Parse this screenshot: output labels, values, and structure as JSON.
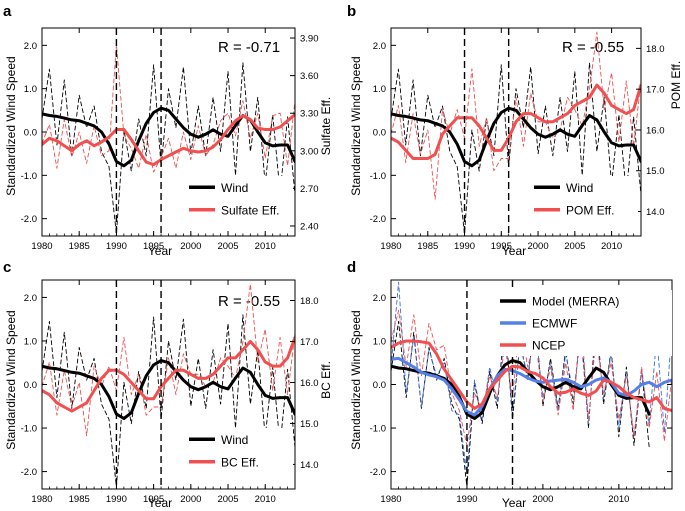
{
  "chart_data": [
    {
      "panel": "a",
      "type": "line",
      "correlation_label": "R = -0.71",
      "xlabel": "Year",
      "ylabel": "Standardized Wind Speed",
      "ylabel_right": "Sulfate Eff.",
      "xlim": [
        1980,
        2014
      ],
      "ylim": [
        -2.4,
        2.4
      ],
      "ylim_right": [
        2.32,
        3.98
      ],
      "x_ticks": [
        "1980",
        "1985",
        "1990",
        "1995",
        "2000",
        "2005",
        "2010"
      ],
      "y_ticks": [
        "2.0",
        "1.0",
        "0.0",
        "-1.0",
        "-2.0"
      ],
      "y_ticks_right": [
        "3.90",
        "3.60",
        "3.30",
        "3.00",
        "2.70",
        "2.40"
      ],
      "vlines": [
        1990,
        1996
      ],
      "legend": [
        "Wind",
        "Sulfate Eff."
      ],
      "x": [
        1980,
        1981,
        1982,
        1983,
        1984,
        1985,
        1986,
        1987,
        1988,
        1989,
        1990,
        1991,
        1992,
        1993,
        1994,
        1995,
        1996,
        1997,
        1998,
        1999,
        2000,
        2001,
        2002,
        2003,
        2004,
        2005,
        2006,
        2007,
        2008,
        2009,
        2010,
        2011,
        2012,
        2013,
        2014
      ],
      "series": [
        {
          "name": "Wind",
          "axis": "left",
          "style": "smoothed",
          "values": [
            0.42,
            0.38,
            0.36,
            0.32,
            0.28,
            0.26,
            0.2,
            0.14,
            0.0,
            -0.28,
            -0.68,
            -0.78,
            -0.65,
            -0.2,
            0.2,
            0.45,
            0.55,
            0.5,
            0.3,
            0.1,
            -0.05,
            -0.12,
            -0.05,
            0.05,
            -0.05,
            -0.1,
            0.15,
            0.38,
            0.28,
            0.0,
            -0.25,
            -0.32,
            -0.3,
            -0.3,
            -0.68
          ]
        },
        {
          "name": "Wind (annual)",
          "axis": "left",
          "style": "dashed",
          "values": [
            0.3,
            1.45,
            -0.3,
            1.2,
            -0.55,
            0.85,
            0.1,
            0.6,
            -0.45,
            -0.8,
            -2.35,
            0.05,
            -0.9,
            0.3,
            -0.55,
            1.55,
            -0.8,
            1.0,
            0.1,
            1.5,
            -0.5,
            0.6,
            -0.55,
            0.8,
            -0.45,
            1.4,
            -1.0,
            1.6,
            -0.45,
            0.8,
            -1.2,
            0.4,
            -1.4,
            0.35,
            -1.45
          ]
        },
        {
          "name": "Sulfate Eff.",
          "axis": "right",
          "style": "smoothed",
          "values": [
            3.05,
            3.1,
            3.08,
            3.04,
            3.0,
            3.05,
            3.08,
            3.04,
            3.07,
            3.11,
            3.17,
            3.17,
            3.09,
            3.0,
            2.91,
            2.89,
            2.93,
            2.96,
            2.99,
            3.02,
            3.0,
            2.99,
            3.0,
            3.03,
            3.09,
            3.17,
            3.24,
            3.28,
            3.25,
            3.18,
            3.17,
            3.17,
            3.19,
            3.24,
            3.29
          ]
        },
        {
          "name": "Sulfate Eff. (annual)",
          "axis": "right",
          "style": "dashed",
          "values": [
            3.06,
            3.21,
            2.86,
            3.25,
            2.95,
            3.15,
            2.9,
            3.2,
            2.96,
            3.0,
            3.85,
            3.12,
            3.02,
            2.86,
            3.13,
            2.83,
            2.95,
            3.1,
            2.86,
            3.15,
            2.93,
            3.2,
            2.96,
            3.05,
            3.24,
            3.3,
            3.12,
            3.4,
            3.1,
            3.3,
            2.94,
            3.28,
            3.3,
            2.88,
            3.4
          ]
        }
      ]
    },
    {
      "panel": "b",
      "type": "line",
      "correlation_label": "R = -0.55",
      "xlabel": "Year",
      "ylabel": "Standardized Wind Speed",
      "ylabel_right": "POM Eff.",
      "xlim": [
        1980,
        2014
      ],
      "ylim": [
        -2.4,
        2.4
      ],
      "ylim_right": [
        13.4,
        18.5
      ],
      "x_ticks": [
        "1980",
        "1985",
        "1990",
        "1995",
        "2000",
        "2005",
        "2010"
      ],
      "y_ticks": [
        "2.0",
        "1.0",
        "0.0",
        "-1.0",
        "-2.0"
      ],
      "y_ticks_right": [
        "18.0",
        "17.0",
        "16.0",
        "15.0",
        "14.0"
      ],
      "vlines": [
        1990,
        1996
      ],
      "legend": [
        "Wind",
        "POM Eff."
      ],
      "x": [
        1980,
        1981,
        1982,
        1983,
        1984,
        1985,
        1986,
        1987,
        1988,
        1989,
        1990,
        1991,
        1992,
        1993,
        1994,
        1995,
        1996,
        1997,
        1998,
        1999,
        2000,
        2001,
        2002,
        2003,
        2004,
        2005,
        2006,
        2007,
        2008,
        2009,
        2010,
        2011,
        2012,
        2013,
        2014
      ],
      "series": [
        {
          "name": "Wind",
          "axis": "left",
          "style": "smoothed",
          "values": [
            0.42,
            0.38,
            0.36,
            0.32,
            0.28,
            0.26,
            0.2,
            0.14,
            0.0,
            -0.28,
            -0.68,
            -0.78,
            -0.65,
            -0.2,
            0.2,
            0.45,
            0.55,
            0.5,
            0.3,
            0.1,
            -0.05,
            -0.12,
            -0.05,
            0.05,
            -0.05,
            -0.1,
            0.15,
            0.38,
            0.28,
            0.0,
            -0.25,
            -0.32,
            -0.3,
            -0.3,
            -0.68
          ]
        },
        {
          "name": "Wind (annual)",
          "axis": "left",
          "style": "dashed",
          "values": [
            0.3,
            1.45,
            -0.3,
            1.2,
            -0.55,
            0.85,
            0.1,
            0.6,
            -0.45,
            -0.8,
            -2.35,
            0.05,
            -0.9,
            0.3,
            -0.55,
            1.55,
            -0.8,
            1.0,
            0.1,
            1.5,
            -0.5,
            0.6,
            -0.55,
            0.8,
            -0.45,
            1.4,
            -1.0,
            1.6,
            -0.45,
            0.8,
            -1.2,
            0.4,
            -1.4,
            0.35,
            -1.45
          ]
        },
        {
          "name": "POM Eff.",
          "axis": "right",
          "style": "smoothed",
          "values": [
            15.8,
            15.7,
            15.5,
            15.3,
            15.3,
            15.3,
            15.4,
            15.9,
            16.1,
            16.3,
            16.3,
            16.3,
            16.1,
            15.8,
            15.5,
            15.5,
            15.8,
            16.2,
            16.4,
            16.4,
            16.3,
            16.2,
            16.2,
            16.3,
            16.4,
            16.6,
            16.7,
            16.8,
            17.1,
            16.9,
            16.6,
            16.5,
            16.4,
            16.5,
            17.1
          ]
        },
        {
          "name": "POM Eff. (annual)",
          "axis": "right",
          "style": "dashed",
          "values": [
            15.9,
            16.6,
            15.2,
            16.4,
            15.4,
            16.0,
            14.3,
            16.5,
            15.9,
            16.5,
            15.8,
            17.5,
            15.6,
            16.3,
            15.0,
            15.3,
            15.3,
            16.8,
            15.6,
            16.9,
            16.2,
            16.2,
            15.8,
            16.0,
            16.8,
            16.5,
            16.1,
            17.0,
            18.4,
            16.5,
            17.4,
            15.7,
            17.2,
            15.6,
            17.2
          ]
        }
      ]
    },
    {
      "panel": "c",
      "type": "line",
      "correlation_label": "R = -0.55",
      "xlabel": "Year",
      "ylabel": "Standardized Wind Speed",
      "ylabel_right": "BC Eff.",
      "xlim": [
        1980,
        2014
      ],
      "ylim": [
        -2.4,
        2.4
      ],
      "ylim_right": [
        13.4,
        18.5
      ],
      "x_ticks": [
        "1980",
        "1985",
        "1990",
        "1995",
        "2000",
        "2005",
        "2010"
      ],
      "y_ticks": [
        "2.0",
        "1.0",
        "0.0",
        "-1.0",
        "-2.0"
      ],
      "y_ticks_right": [
        "18.0",
        "17.0",
        "16.0",
        "15.0",
        "14.0"
      ],
      "vlines": [
        1990,
        1996
      ],
      "legend": [
        "Wind",
        "BC Eff."
      ],
      "x": [
        1980,
        1981,
        1982,
        1983,
        1984,
        1985,
        1986,
        1987,
        1988,
        1989,
        1990,
        1991,
        1992,
        1993,
        1994,
        1995,
        1996,
        1997,
        1998,
        1999,
        2000,
        2001,
        2002,
        2003,
        2004,
        2005,
        2006,
        2007,
        2008,
        2009,
        2010,
        2011,
        2012,
        2013,
        2014
      ],
      "series": [
        {
          "name": "Wind",
          "axis": "left",
          "style": "smoothed",
          "values": [
            0.42,
            0.38,
            0.36,
            0.32,
            0.28,
            0.26,
            0.2,
            0.14,
            0.0,
            -0.28,
            -0.68,
            -0.78,
            -0.65,
            -0.2,
            0.2,
            0.45,
            0.55,
            0.5,
            0.3,
            0.1,
            -0.05,
            -0.12,
            -0.05,
            0.05,
            -0.05,
            -0.1,
            0.15,
            0.38,
            0.28,
            0.0,
            -0.25,
            -0.32,
            -0.3,
            -0.3,
            -0.68
          ]
        },
        {
          "name": "Wind (annual)",
          "axis": "left",
          "style": "dashed",
          "values": [
            0.3,
            1.45,
            -0.3,
            1.2,
            -0.55,
            0.85,
            0.1,
            0.6,
            -0.45,
            -0.8,
            -2.35,
            0.05,
            -0.9,
            0.3,
            -0.55,
            1.55,
            -0.8,
            1.0,
            0.1,
            1.5,
            -0.5,
            0.6,
            -0.55,
            0.8,
            -0.45,
            1.4,
            -1.0,
            1.6,
            -0.45,
            0.8,
            -1.2,
            0.4,
            -1.4,
            0.35,
            -1.45
          ]
        },
        {
          "name": "BC Eff.",
          "axis": "right",
          "style": "smoothed",
          "values": [
            15.8,
            15.7,
            15.5,
            15.4,
            15.3,
            15.4,
            15.5,
            15.8,
            16.1,
            16.3,
            16.3,
            16.2,
            16.0,
            15.8,
            15.6,
            15.6,
            15.9,
            16.1,
            16.3,
            16.3,
            16.2,
            16.1,
            16.1,
            16.2,
            16.4,
            16.6,
            16.6,
            16.8,
            17.0,
            16.8,
            16.5,
            16.4,
            16.4,
            16.6,
            17.1
          ]
        },
        {
          "name": "BC Eff. (annual)",
          "axis": "right",
          "style": "dashed",
          "values": [
            15.9,
            16.5,
            15.2,
            16.3,
            15.4,
            16.0,
            14.7,
            16.4,
            15.9,
            16.4,
            15.8,
            17.1,
            15.7,
            16.2,
            15.2,
            15.4,
            15.4,
            16.6,
            15.7,
            16.7,
            16.2,
            16.2,
            15.9,
            16.0,
            16.6,
            16.4,
            16.1,
            17.0,
            18.4,
            16.5,
            17.3,
            15.8,
            17.1,
            15.7,
            17.2
          ]
        }
      ]
    },
    {
      "panel": "d",
      "type": "line",
      "xlabel": "Year",
      "ylabel": "Standardized Wind Speed",
      "xlim": [
        1980,
        2017
      ],
      "ylim": [
        -2.4,
        2.4
      ],
      "x_ticks": [
        "1980",
        "1990",
        "2000",
        "2010"
      ],
      "y_ticks": [
        "2.0",
        "1.0",
        "0.0",
        "-1.0",
        "-2.0"
      ],
      "vlines": [
        1990,
        1996
      ],
      "legend": [
        "Model (MERRA)",
        "ECMWF",
        "NCEP"
      ],
      "x": [
        1980,
        1981,
        1982,
        1983,
        1984,
        1985,
        1986,
        1987,
        1988,
        1989,
        1990,
        1991,
        1992,
        1993,
        1994,
        1995,
        1996,
        1997,
        1998,
        1999,
        2000,
        2001,
        2002,
        2003,
        2004,
        2005,
        2006,
        2007,
        2008,
        2009,
        2010,
        2011,
        2012,
        2013,
        2014,
        2015,
        2016,
        2017
      ],
      "series": [
        {
          "name": "Model (MERRA)",
          "style": "smoothed",
          "values": [
            0.42,
            0.38,
            0.36,
            0.32,
            0.28,
            0.26,
            0.2,
            0.14,
            0.0,
            -0.28,
            -0.68,
            -0.78,
            -0.65,
            -0.2,
            0.2,
            0.45,
            0.55,
            0.5,
            0.3,
            0.1,
            -0.05,
            -0.12,
            -0.05,
            0.05,
            -0.05,
            -0.1,
            0.15,
            0.38,
            0.28,
            0.0,
            -0.25,
            -0.32,
            -0.3,
            -0.3,
            -0.68,
            null,
            null,
            null
          ]
        },
        {
          "name": "ECMWF",
          "style": "smoothed",
          "values": [
            0.58,
            0.6,
            0.5,
            0.4,
            0.28,
            0.22,
            0.18,
            0.1,
            -0.1,
            -0.35,
            -0.62,
            -0.7,
            -0.5,
            -0.1,
            0.2,
            0.35,
            0.32,
            0.25,
            0.15,
            0.08,
            0.05,
            0.08,
            0.1,
            0.12,
            0.05,
            -0.05,
            0.0,
            0.1,
            0.15,
            0.05,
            -0.2,
            -0.25,
            -0.15,
            0.0,
            0.05,
            -0.05,
            0.05,
            0.1
          ]
        },
        {
          "name": "NCEP",
          "style": "smoothed",
          "values": [
            0.85,
            0.95,
            1.0,
            1.0,
            0.98,
            0.95,
            0.7,
            0.35,
            0.1,
            -0.15,
            -0.4,
            -0.55,
            -0.45,
            -0.1,
            0.1,
            0.3,
            0.42,
            0.4,
            0.3,
            0.25,
            0.15,
            -0.05,
            -0.2,
            -0.18,
            -0.1,
            -0.2,
            -0.25,
            -0.15,
            0.1,
            0.05,
            -0.05,
            -0.2,
            -0.3,
            -0.35,
            -0.4,
            -0.3,
            -0.55,
            -0.6
          ]
        },
        {
          "name": "Model (MERRA) annual",
          "style": "dashed",
          "values": [
            0.3,
            1.45,
            -0.3,
            1.2,
            -0.55,
            0.85,
            0.1,
            0.6,
            -0.45,
            -0.8,
            -2.35,
            0.05,
            -0.9,
            0.3,
            -0.55,
            1.55,
            -0.8,
            1.0,
            0.1,
            1.5,
            -0.5,
            0.6,
            -0.55,
            0.8,
            -0.45,
            1.4,
            -1.0,
            1.6,
            -0.45,
            0.8,
            -1.2,
            0.4,
            -1.4,
            0.35,
            -1.45,
            null,
            null,
            null
          ]
        },
        {
          "name": "ECMWF annual",
          "style": "dashed",
          "values": [
            0.4,
            2.35,
            -0.2,
            1.1,
            -0.5,
            0.8,
            0.2,
            0.5,
            -0.6,
            -0.7,
            -2.05,
            0.1,
            -0.8,
            0.4,
            -0.4,
            1.2,
            -0.6,
            0.9,
            0.2,
            1.3,
            -0.3,
            0.5,
            -0.6,
            0.7,
            -0.2,
            1.1,
            -0.9,
            1.3,
            -0.3,
            0.7,
            -1.0,
            0.3,
            -1.2,
            0.3,
            -0.9,
            1.1,
            -1.1,
            1.3
          ]
        },
        {
          "name": "NCEP annual",
          "style": "dashed",
          "values": [
            1.0,
            1.7,
            0.4,
            1.6,
            0.2,
            1.4,
            0.8,
            0.9,
            -0.2,
            -0.6,
            -1.4,
            -0.2,
            -0.6,
            0.2,
            -0.3,
            0.9,
            -0.3,
            1.5,
            0.4,
            1.1,
            -0.4,
            0.4,
            -0.7,
            0.5,
            -0.6,
            1.5,
            -0.8,
            1.1,
            -0.2,
            0.5,
            -0.8,
            0.2,
            -1.2,
            0.4,
            -1.0,
            0.3,
            -1.3,
            0.2
          ]
        }
      ]
    }
  ]
}
